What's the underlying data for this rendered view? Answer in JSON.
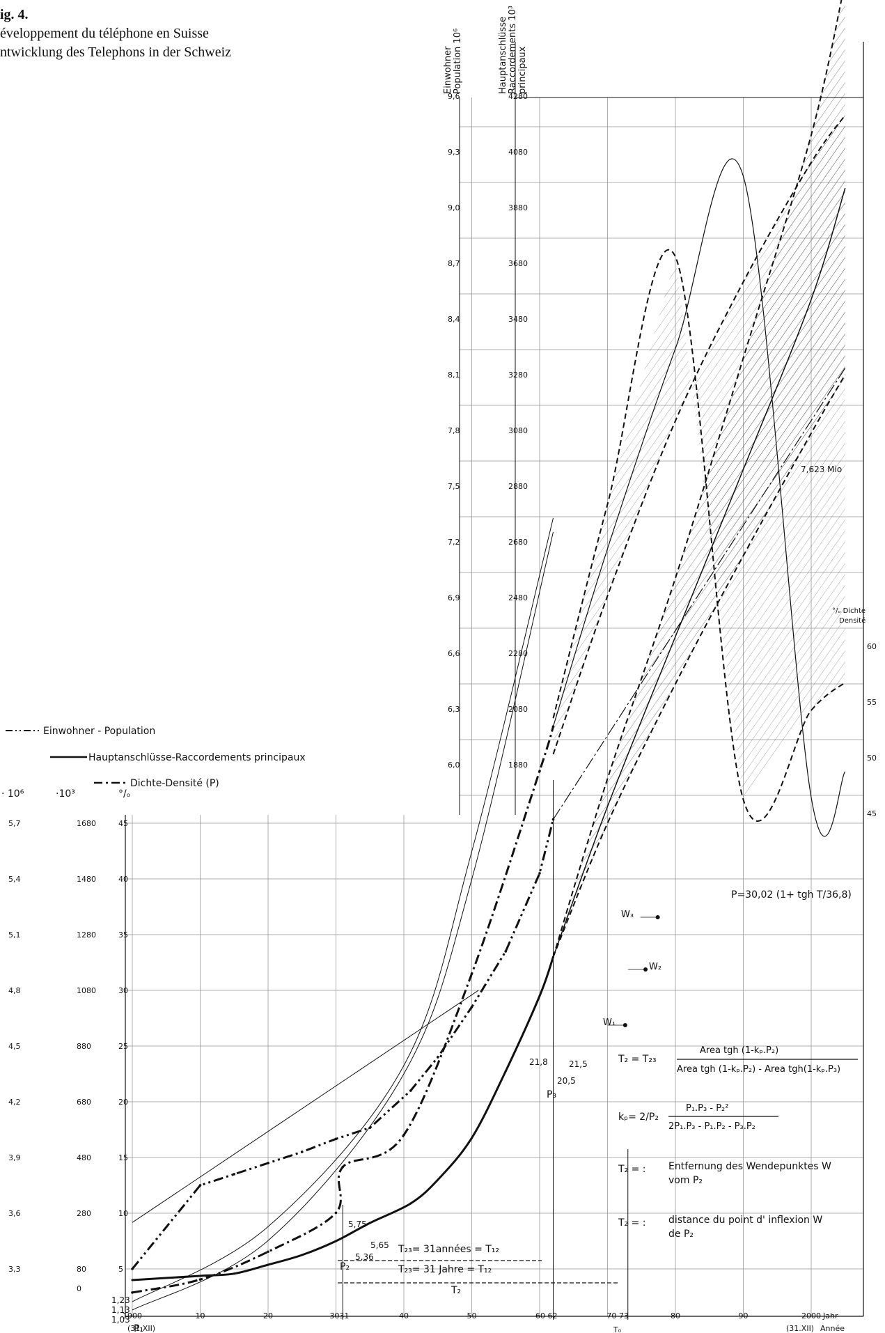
{
  "caption": {
    "fig": "ig. 4.",
    "line_fr": "éveloppement du téléphone en Suisse",
    "line_de": "ntwicklung des Telephons in der Schweiz"
  },
  "axis_headers": {
    "population": [
      "Einwohner",
      "Population 10⁶"
    ],
    "mains": [
      "Hauptanschlüsse",
      "Raccordements 10³",
      "principaux"
    ],
    "density_right": [
      "°/ₒ Dichte",
      "Densité"
    ],
    "left_units": [
      "· 10⁶",
      "·10³",
      "°/ₒ"
    ]
  },
  "legend": [
    {
      "label": "Einwohner - Population",
      "style": "dash-dot-dot"
    },
    {
      "label": "Hauptanschlüsse-Raccordements principaux",
      "style": "solid"
    },
    {
      "label": "Dichte-Densité (P)",
      "style": "dash-dot"
    }
  ],
  "annotations": {
    "mio": "7,623 Mio",
    "w1": "W₁",
    "w2": "W₂",
    "w3": "W₃",
    "p1": "P₁",
    "p2": "P₂",
    "p3": "P₃",
    "v575": "5,75",
    "v565": "5,65",
    "v536": "5,36",
    "v218": "21,8",
    "v215": "21,5",
    "v205": "20,5",
    "v123": "1,23",
    "v113": "1,13",
    "v103": "1,03",
    "t23_fr": "T₂₃= 31années = T₁₂",
    "t23_de": "T₂₃= 31 Jahre = T₁₂",
    "t2": "T₂",
    "t0": "T₀",
    "jahr": "Jahr",
    "annee": "Année",
    "x31xii": "(31.XII)",
    "formula_p": "P=30,02 (1+ tgh T/36,8)",
    "formula_t2_lhs": "T₂ = T₂₃",
    "formula_t2_num": "Area tgh (1-kₚ.P₂)",
    "formula_t2_den": "Area tgh (1-kₚ.P₂) - Area tgh(1-kₚ.P₃)",
    "formula_kp_lhs": "kₚ= 2/P₂",
    "formula_kp_num": "P₁.P₃ - P₂²",
    "formula_kp_den": "2P₁.P₃ - P₁.P₂ - P₃.P₂",
    "def_de_lhs": "T₂ = :",
    "def_de": [
      "Entfernung des Wendepunktes W",
      "vom P₂"
    ],
    "def_fr_lhs": "T₂ = :",
    "def_fr": [
      "distance du point d' inflexion W",
      "de P₂"
    ]
  },
  "chart_data": {
    "type": "line",
    "title": "",
    "x_ticks": [
      "1900",
      "10",
      "20",
      "3031",
      "40",
      "50",
      "60 62",
      "70 73",
      "80",
      "90",
      "2000"
    ],
    "x_range": [
      1900,
      2005
    ],
    "y_axes": [
      {
        "name": "Einwohner · 10⁶",
        "ticks_lower": [
          "3,3",
          "3,6",
          "3,9",
          "4,2",
          "4,5",
          "4,8",
          "5,1",
          "5,4",
          "5,7"
        ],
        "ticks_upper": [
          "6,0",
          "6,3",
          "6,6",
          "6,9",
          "7,2",
          "7,5",
          "7,8",
          "8,1",
          "8,4",
          "8,7",
          "9,0",
          "9,3",
          "9,6"
        ]
      },
      {
        "name": "Hauptanschlüsse · 10³",
        "ticks_lower": [
          "0",
          "80",
          "280",
          "480",
          "680",
          "880",
          "1080",
          "1280",
          "1480",
          "1680"
        ],
        "ticks_upper": [
          "1880",
          "2080",
          "2280",
          "2480",
          "2680",
          "2880",
          "3080",
          "3280",
          "3480",
          "3680",
          "3880",
          "4080",
          "4280"
        ]
      },
      {
        "name": "Dichte °/ₒ",
        "ticks_lower": [
          "5",
          "10",
          "15",
          "20",
          "25",
          "30",
          "35",
          "40",
          "45"
        ],
        "ticks_upper": [
          "45",
          "50",
          "55",
          "60"
        ]
      }
    ],
    "series": [
      {
        "name": "Einwohner - Population",
        "x": [
          1900,
          1910,
          1915,
          1920,
          1925,
          1930,
          1935,
          1941,
          1945,
          1950,
          1955,
          1960,
          1962
        ],
        "y": [
          3.3,
          3.75,
          3.81,
          3.87,
          3.93,
          4.0,
          4.06,
          4.26,
          4.44,
          4.71,
          5.01,
          5.43,
          5.72
        ],
        "trend_to": {
          "x": 2005,
          "y": 8.15,
          "label": "7,623 Mio"
        }
      },
      {
        "name": "Hauptanschlüsse-Raccordements principaux",
        "x": [
          1900,
          1910,
          1915,
          1920,
          1925,
          1930,
          1935,
          1941,
          1945,
          1950,
          1955,
          1960,
          1962
        ],
        "y": [
          40,
          55,
          63,
          95,
          130,
          180,
          245,
          315,
          400,
          550,
          790,
          1060,
          1200
        ],
        "projection": {
          "x": [
            1962,
            1970,
            1980,
            1990,
            2000,
            2005
          ],
          "y": [
            1200,
            1740,
            2350,
            2950,
            3560,
            3960
          ],
          "upper": [
            1200,
            1840,
            2560,
            3350,
            4150,
            4700
          ],
          "lower": [
            1200,
            1680,
            2180,
            2640,
            3080,
            3290
          ]
        }
      },
      {
        "name": "Dichte-Densité (P)",
        "x": [
          1900,
          1910,
          1920,
          1930,
          1931,
          1940,
          1950,
          1960,
          1962
        ],
        "y": [
          1.13,
          1.6,
          2.6,
          4.0,
          5.65,
          6.8,
          12.6,
          19.9,
          21.5
        ],
        "projection": {
          "x": [
            1962,
            1970,
            1980,
            1990,
            2000,
            2005
          ],
          "y": [
            21.5,
            27.9,
            35.1,
            41.3,
            46.7,
            49.0
          ],
          "upper": [
            21.8,
            29.5,
            38.4,
            46.5,
            54.5,
            57.0
          ],
          "lower": [
            20.5,
            26.2,
            32.5,
            37.5,
            41.8,
            43.5
          ]
        }
      }
    ]
  }
}
